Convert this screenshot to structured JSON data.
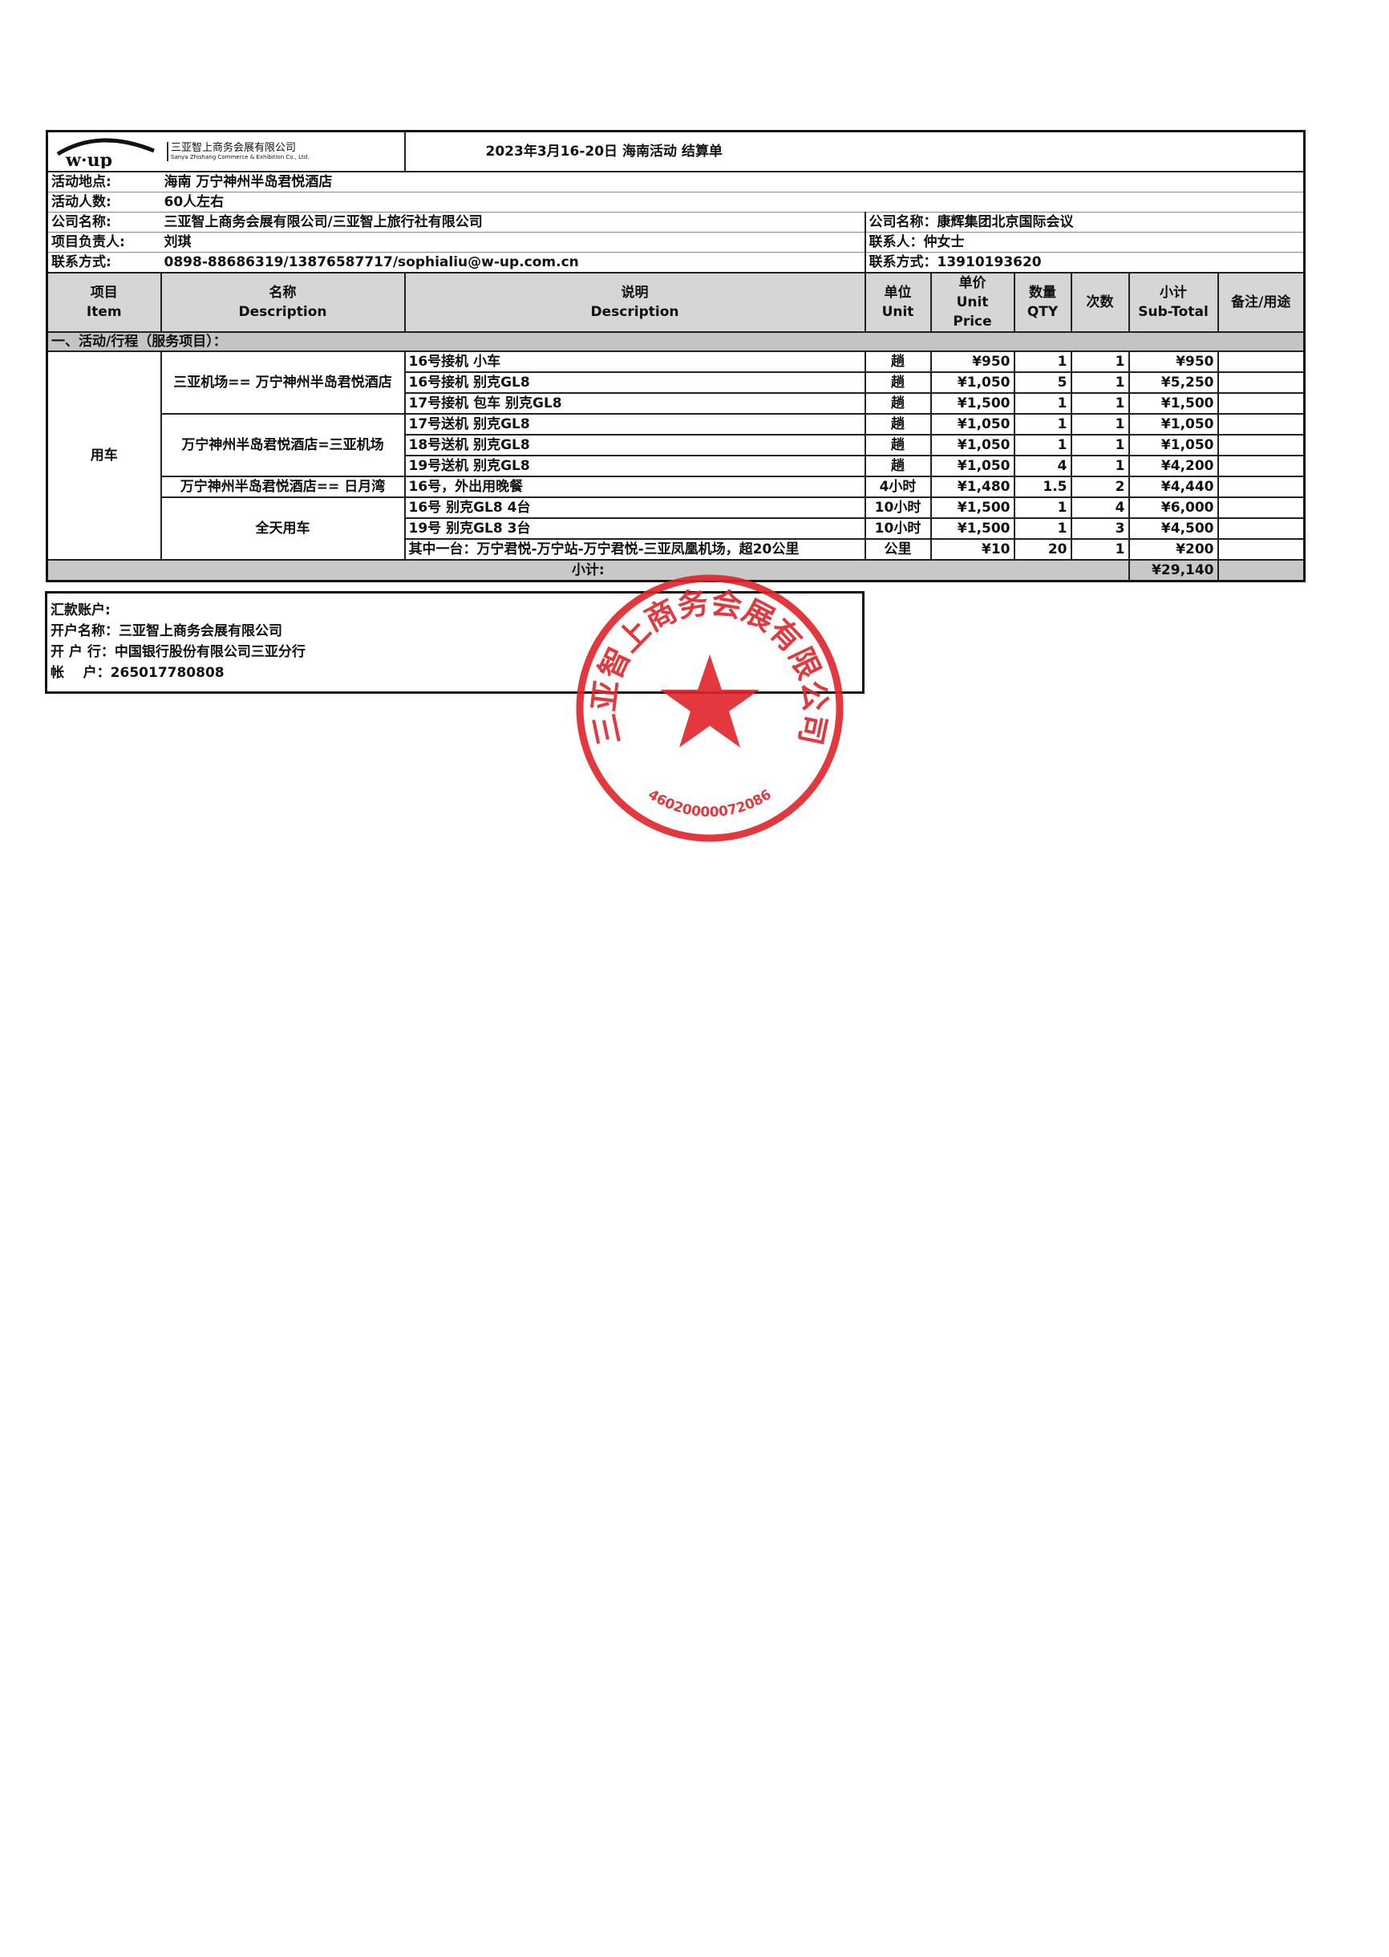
{
  "logo": {
    "mark": "w·up",
    "company_cn": "三亚智上商务会展有限公司",
    "company_en": "Sanya Zhishang Commerce & Exhibition Co., Ltd."
  },
  "title": "2023年3月16-20日 海南活动  结算单",
  "info": {
    "venue_label": "活动地点:",
    "venue": "海南   万宁神州半岛君悦酒店",
    "people_label": "活动人数:",
    "people": "60人左右",
    "company_label": "公司名称:",
    "company": "三亚智上商务会展有限公司/三亚智上旅行社有限公司",
    "manager_label": "项目负责人:",
    "manager": "刘琪",
    "contact_label": "联系方式:",
    "contact": "0898-88686319/13876587717/sophialiu@w-up.com.cn",
    "client_company": "公司名称：康辉集团北京国际会议",
    "client_person": "联系人：仲女士",
    "client_contact": "联系方式：13910193620"
  },
  "columns": [
    {
      "cn": "项目",
      "en": "Item"
    },
    {
      "cn": "名称",
      "en": "Description"
    },
    {
      "cn": "说明",
      "en": "Description"
    },
    {
      "cn": "单位",
      "en": "Unit"
    },
    {
      "cn": "单价",
      "en": "Unit Price"
    },
    {
      "cn": "数量",
      "en": "QTY"
    },
    {
      "cn": "次数",
      "en": ""
    },
    {
      "cn": "小计",
      "en": "Sub-Total"
    },
    {
      "cn": "备注/用途",
      "en": ""
    }
  ],
  "section": "一、活动/行程（服务项目）：",
  "item": "用车",
  "groups": [
    {
      "name": "三亚机场== 万宁神州半岛君悦酒店",
      "rows": [
        {
          "desc": "16号接机 小车",
          "unit": "趟",
          "price": "¥950",
          "qty": "1",
          "times": "1",
          "subtotal": "¥950",
          "note": ""
        },
        {
          "desc": "16号接机 别克GL8",
          "unit": "趟",
          "price": "¥1,050",
          "qty": "5",
          "times": "1",
          "subtotal": "¥5,250",
          "note": ""
        },
        {
          "desc": "17号接机 包车 别克GL8",
          "unit": "趟",
          "price": "¥1,500",
          "qty": "1",
          "times": "1",
          "subtotal": "¥1,500",
          "note": ""
        }
      ]
    },
    {
      "name": "万宁神州半岛君悦酒店=三亚机场",
      "rows": [
        {
          "desc": "17号送机 别克GL8",
          "unit": "趟",
          "price": "¥1,050",
          "qty": "1",
          "times": "1",
          "subtotal": "¥1,050",
          "note": ""
        },
        {
          "desc": "18号送机 别克GL8",
          "unit": "趟",
          "price": "¥1,050",
          "qty": "1",
          "times": "1",
          "subtotal": "¥1,050",
          "note": ""
        },
        {
          "desc": "19号送机 别克GL8",
          "unit": "趟",
          "price": "¥1,050",
          "qty": "4",
          "times": "1",
          "subtotal": "¥4,200",
          "note": ""
        }
      ]
    },
    {
      "name": "万宁神州半岛君悦酒店== 日月湾",
      "rows": [
        {
          "desc": "16号，外出用晚餐",
          "unit": "4小时",
          "price": "¥1,480",
          "qty": "1.5",
          "times": "2",
          "subtotal": "¥4,440",
          "note": ""
        }
      ]
    },
    {
      "name": "全天用车",
      "rows": [
        {
          "desc": "16号 别克GL8  4台",
          "unit": "10小时",
          "price": "¥1,500",
          "qty": "1",
          "times": "4",
          "subtotal": "¥6,000",
          "note": ""
        },
        {
          "desc": "19号 别克GL8  3台",
          "unit": "10小时",
          "price": "¥1,500",
          "qty": "1",
          "times": "3",
          "subtotal": "¥4,500",
          "note": ""
        },
        {
          "desc": "其中一台：万宁君悦-万宁站-万宁君悦-三亚凤凰机场，超20公里",
          "unit": "公里",
          "price": "¥10",
          "qty": "20",
          "times": "1",
          "subtotal": "¥200",
          "note": ""
        }
      ]
    }
  ],
  "subtotal": {
    "label": "小计:",
    "value": "¥29,140"
  },
  "bank": {
    "title": "汇款账户:",
    "name": "开户名称：三亚智上商务会展有限公司",
    "bank": "开 户 行：中国银行股份有限公司三亚分行",
    "account": "帐    户：265017780808"
  },
  "stamp": {
    "text": "三亚智上商务会展有限公司",
    "number": "46020000072086",
    "color": "#e0242a"
  }
}
